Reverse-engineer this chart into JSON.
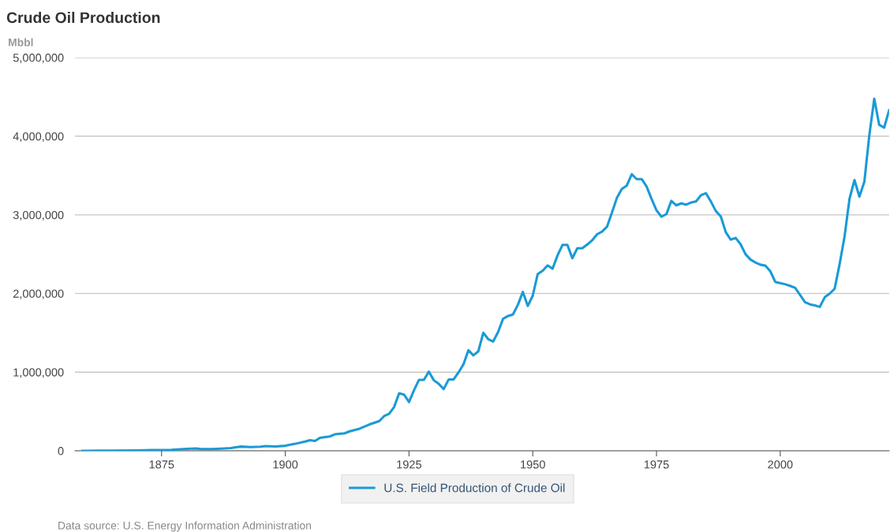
{
  "chart_data": {
    "type": "line",
    "title": "Crude Oil Production",
    "ylabel": "Mbbl",
    "annotations": [
      "Data source: U.S. Energy Information Administration"
    ],
    "x": [
      1859,
      1860,
      1862,
      1865,
      1870,
      1873,
      1875,
      1877,
      1880,
      1882,
      1883,
      1885,
      1887,
      1889,
      1890,
      1891,
      1893,
      1895,
      1896,
      1898,
      1900,
      1902,
      1904,
      1905,
      1906,
      1907,
      1909,
      1910,
      1912,
      1913,
      1915,
      1917,
      1919,
      1920,
      1921,
      1922,
      1923,
      1924,
      1925,
      1926,
      1927,
      1928,
      1929,
      1930,
      1931,
      1932,
      1933,
      1934,
      1935,
      1936,
      1937,
      1938,
      1939,
      1940,
      1941,
      1942,
      1943,
      1944,
      1945,
      1946,
      1947,
      1948,
      1949,
      1950,
      1951,
      1952,
      1953,
      1954,
      1955,
      1956,
      1957,
      1958,
      1959,
      1960,
      1961,
      1962,
      1963,
      1964,
      1965,
      1966,
      1967,
      1968,
      1969,
      1970,
      1971,
      1972,
      1973,
      1974,
      1975,
      1976,
      1977,
      1978,
      1979,
      1980,
      1981,
      1982,
      1983,
      1984,
      1985,
      1986,
      1987,
      1988,
      1989,
      1990,
      1991,
      1992,
      1993,
      1994,
      1995,
      1996,
      1997,
      1998,
      1999,
      2000,
      2001,
      2002,
      2003,
      2004,
      2005,
      2006,
      2007,
      2008,
      2009,
      2010,
      2011,
      2012,
      2013,
      2014,
      2015,
      2016,
      2017,
      2018,
      2019,
      2020,
      2021,
      2022
    ],
    "series": [
      {
        "name": "U.S. Field Production of Crude Oil",
        "color": "#1a9ad6",
        "values": [
          2,
          500,
          3000,
          2500,
          5000,
          9900,
          8800,
          13000,
          26000,
          30000,
          23000,
          22000,
          28000,
          35000,
          46000,
          54000,
          48000,
          53000,
          61000,
          55000,
          64000,
          89000,
          117000,
          135000,
          126000,
          166000,
          183000,
          210000,
          223000,
          248000,
          281000,
          335000,
          378000,
          443000,
          472000,
          558000,
          732000,
          714000,
          620000,
          771000,
          901000,
          901000,
          1007000,
          898000,
          851000,
          785000,
          906000,
          908000,
          997000,
          1100000,
          1279000,
          1214000,
          1265000,
          1500000,
          1420000,
          1390000,
          1510000,
          1678000,
          1714000,
          1734000,
          1857000,
          2020000,
          1842000,
          1974000,
          2248000,
          2290000,
          2357000,
          2315000,
          2484000,
          2617000,
          2617000,
          2449000,
          2575000,
          2575000,
          2622000,
          2676000,
          2753000,
          2787000,
          2849000,
          3028000,
          3216000,
          3329000,
          3372000,
          3517000,
          3454000,
          3455000,
          3361000,
          3203000,
          3057000,
          2976000,
          3009000,
          3178000,
          3121000,
          3146000,
          3129000,
          3157000,
          3171000,
          3250000,
          3275000,
          3168000,
          3047000,
          2979000,
          2779000,
          2685000,
          2707000,
          2625000,
          2499000,
          2431000,
          2394000,
          2366000,
          2355000,
          2282000,
          2147000,
          2131000,
          2118000,
          2097000,
          2073000,
          1983000,
          1890000,
          1862000,
          1848000,
          1830000,
          1953000,
          1999000,
          2061000,
          2373000,
          2725000,
          3204000,
          3442000,
          3232000,
          3421000,
          4011000,
          4476000,
          4144000,
          4108000,
          4330000
        ]
      }
    ],
    "xlim": [
      1857.5,
      2022
    ],
    "xticks": [
      1875,
      1900,
      1925,
      1950,
      1975,
      2000
    ],
    "ylim": [
      0,
      5000000
    ],
    "yticks": [
      {
        "value": 0,
        "label": "0"
      },
      {
        "value": 1000000,
        "label": "1,000,000"
      },
      {
        "value": 2000000,
        "label": "2,000,000"
      },
      {
        "value": 3000000,
        "label": "3,000,000"
      },
      {
        "value": 4000000,
        "label": "4,000,000"
      },
      {
        "value": 5000000,
        "label": "5,000,000"
      }
    ],
    "grid": "y",
    "legend": "bottom"
  }
}
